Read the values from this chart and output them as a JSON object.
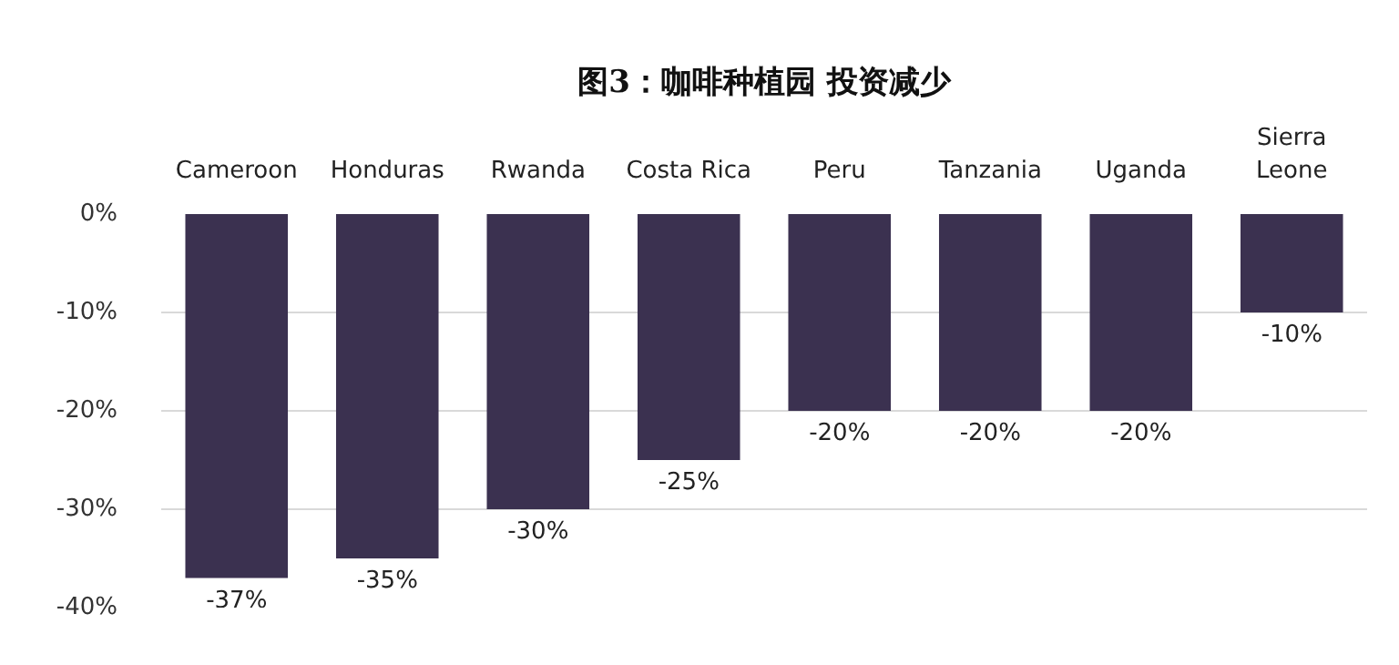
{
  "chart_data": {
    "type": "bar",
    "title": "图3：咖啡种植园 投资减少",
    "categories": [
      "Cameroon",
      "Honduras",
      "Rwanda",
      "Costa Rica",
      "Peru",
      "Tanzania",
      "Uganda",
      "Sierra Leone"
    ],
    "values": [
      -37,
      -35,
      -30,
      -25,
      -20,
      -20,
      -20,
      -10
    ],
    "value_labels": [
      "-37%",
      "-35%",
      "-30%",
      "-25%",
      "-20%",
      "-20%",
      "-20%",
      "-10%"
    ],
    "color": "#3b3150",
    "ylim": [
      -40,
      0
    ],
    "yticks": [
      {
        "value": 0,
        "label": "0%"
      },
      {
        "value": -10,
        "label": "-10%"
      },
      {
        "value": -20,
        "label": "-20%"
      },
      {
        "value": -30,
        "label": "-30%"
      },
      {
        "value": -40,
        "label": "-40%"
      }
    ],
    "grid": "y"
  }
}
